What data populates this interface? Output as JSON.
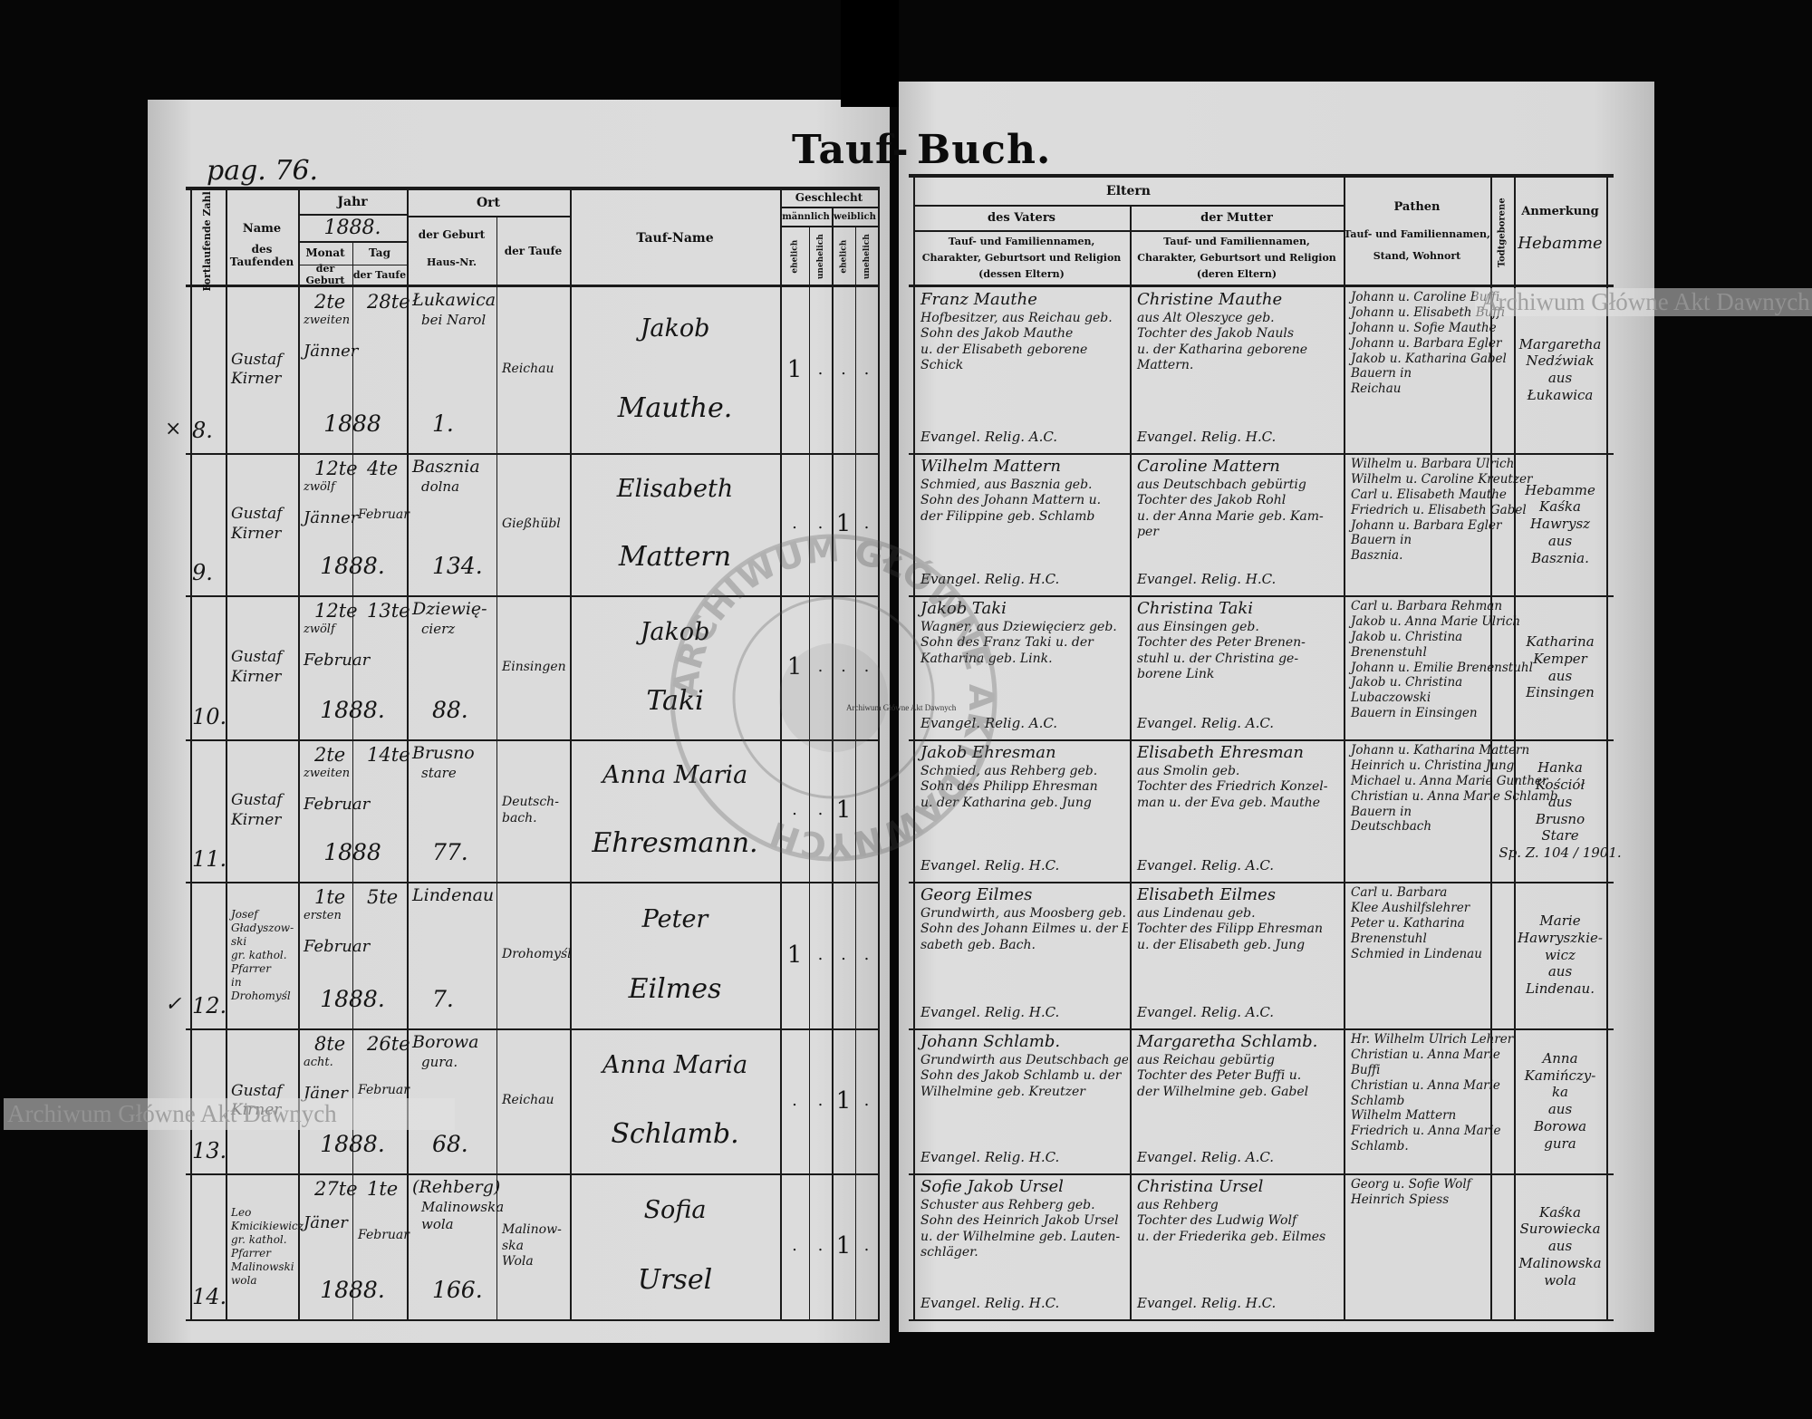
{
  "document": {
    "title_left": "Tauf-",
    "title_right": "Buch.",
    "page_number": "pag. 76.",
    "watermark": "Archiwum Główne Akt Dawnych",
    "stamp_text": "ARCHIWUM GŁÓWNE AKT DAWNYCH"
  },
  "left_header": {
    "fortlaufende_zahl": "Fortlaufende Zahl",
    "name_taufenden": [
      "Name",
      "des Taufenden"
    ],
    "jahr": "Jahr",
    "jahr_value": "1888.",
    "monat": "Monat",
    "tag": "Tag",
    "der_geburt": "der Geburt",
    "der_taufe": "der Taufe",
    "ort": "Ort",
    "ort_geburt": "der Geburt",
    "haus_nr": "Haus-Nr.",
    "ort_taufe": "der Taufe",
    "tauf_name": "Tauf-Name",
    "geschlecht": "Geschlecht",
    "maennlich": "männlich",
    "weiblich": "weiblich",
    "ehelich": "ehelich",
    "unehelich": "unehelich"
  },
  "right_header": {
    "eltern": "Eltern",
    "des_vaters": "des Vaters",
    "der_mutter": "der Mutter",
    "vater_desc": [
      "Tauf- und Familiennamen,",
      "Charakter, Geburtsort und Religion",
      "(dessen Eltern)"
    ],
    "mutter_desc": [
      "Tauf- und Familiennamen,",
      "Charakter, Geburtsort und Religion",
      "(deren Eltern)"
    ],
    "pathen": "Pathen",
    "pathen_desc": [
      "Tauf- und Familiennamen,",
      "Stand, Wohnort"
    ],
    "todtgeborene": "Todtgeborene",
    "anmerkung": "Anmerkung",
    "anmerkung_note": "Hebamme"
  },
  "entries": [
    {
      "number": "8.",
      "margin_mark": "×",
      "officiant": [
        "Gustaf",
        "Kirner"
      ],
      "birth": {
        "day": "2te",
        "word": "zweiten",
        "month": "Jänner"
      },
      "baptism": {
        "day": "28te",
        "month": ""
      },
      "year": "1888",
      "birth_place": [
        "Łukawica",
        "bei Narol"
      ],
      "house_no": "1.",
      "baptism_place": [
        "Reichau"
      ],
      "given_name": "Jakob",
      "surname": "Mauthe.",
      "sex": [
        "1",
        ".",
        ".",
        "."
      ],
      "father": [
        "Franz Mauthe",
        "Hofbesitzer, aus Reichau geb.",
        "Sohn des Jakob Mauthe",
        "u. der Elisabeth geborene",
        "Schick",
        "Evangel. Relig. A.C."
      ],
      "mother": [
        "Christine Mauthe",
        "aus Alt Oleszyce geb.",
        "Tochter des Jakob Nauls",
        "u. der Katharina geborene",
        "Mattern.",
        "Evangel. Relig. H.C."
      ],
      "godparents": [
        "Johann u. Caroline Buffi",
        "Johann u. Elisabeth Buffi",
        "Johann u. Sofie Mauthe",
        "Johann u. Barbara Egler",
        "Jakob u. Katharina Gabel",
        "Bauern in",
        "Reichau"
      ],
      "remark": [
        "Margaretha",
        "Nedźwiak",
        "aus",
        "Łukawica"
      ]
    },
    {
      "number": "9.",
      "margin_mark": "",
      "officiant": [
        "Gustaf",
        "Kirner"
      ],
      "birth": {
        "day": "12te",
        "word": "zwölf",
        "month": "Jänner"
      },
      "baptism": {
        "day": "4te",
        "month": "Februar"
      },
      "year": "1888.",
      "birth_place": [
        "Basznia",
        "dolna"
      ],
      "house_no": "134.",
      "baptism_place": [
        "Gießhübl"
      ],
      "given_name": "Elisabeth",
      "surname": "Mattern",
      "sex": [
        ".",
        ".",
        "1",
        "."
      ],
      "father": [
        "Wilhelm Mattern",
        "Schmied, aus Basznia geb.",
        "Sohn des Johann Mattern u.",
        "der Filippine geb. Schlamb",
        "Evangel. Relig. H.C."
      ],
      "mother": [
        "Caroline Mattern",
        "aus Deutschbach gebürtig",
        "Tochter des Jakob Rohl",
        "u. der Anna Marie geb. Kam-",
        "per",
        "Evangel. Relig. H.C."
      ],
      "godparents": [
        "Wilhelm u. Barbara Ulrich",
        "Wilhelm u. Caroline Kreutzer",
        "Carl u. Elisabeth Mauthe",
        "Friedrich u. Elisabeth Gabel",
        "Johann u. Barbara Egler",
        "Bauern in",
        "Basznia."
      ],
      "remark": [
        "Hebamme",
        "Kaśka",
        "Hawrysz",
        "aus",
        "Basznia."
      ]
    },
    {
      "number": "10.",
      "margin_mark": "",
      "officiant": [
        "Gustaf",
        "Kirner"
      ],
      "birth": {
        "day": "12te",
        "word": "zwölf",
        "month": "Februar"
      },
      "baptism": {
        "day": "13te",
        "month": ""
      },
      "year": "1888.",
      "birth_place": [
        "Dziewię-",
        "cierz"
      ],
      "house_no": "88.",
      "baptism_place": [
        "Einsingen"
      ],
      "given_name": "Jakob",
      "surname": "Taki",
      "sex": [
        "1",
        ".",
        ".",
        "."
      ],
      "father": [
        "Jakob Taki",
        "Wagner, aus Dziewięcierz geb.",
        "Sohn des Franz Taki u. der",
        "Katharina geb. Link.",
        "Evangel. Relig. A.C."
      ],
      "mother": [
        "Christina Taki",
        "aus Einsingen geb.",
        "Tochter des Peter Brenen-",
        "stuhl u. der Christina ge-",
        "borene Link",
        "Evangel. Relig. A.C."
      ],
      "godparents": [
        "Carl u. Barbara Rehman",
        "Jakob u. Anna Marie Ulrich",
        "Jakob u. Christina",
        "Brenenstuhl",
        "Johann u. Emilie Brenenstuhl",
        "Jakob u. Christina",
        "Lubaczowski",
        "Bauern in Einsingen"
      ],
      "remark": [
        "Katharina",
        "Kemper",
        "aus",
        "Einsingen"
      ]
    },
    {
      "number": "11.",
      "margin_mark": "",
      "officiant": [
        "Gustaf",
        "Kirner"
      ],
      "birth": {
        "day": "2te",
        "word": "zweiten",
        "month": "Februar"
      },
      "baptism": {
        "day": "14te",
        "month": ""
      },
      "year": "1888",
      "birth_place": [
        "Brusno",
        "stare"
      ],
      "house_no": "77.",
      "baptism_place": [
        "Deutsch-",
        "bach."
      ],
      "given_name": "Anna Maria",
      "surname": "Ehresmann.",
      "sex": [
        ".",
        ".",
        "1",
        ""
      ],
      "father": [
        "Jakob Ehresman",
        "Schmied, aus Rehberg geb.",
        "Sohn des Philipp Ehresman",
        "u. der Katharina geb. Jung",
        "Evangel. Relig. H.C."
      ],
      "mother": [
        "Elisabeth Ehresman",
        "aus Smolin geb.",
        "Tochter des Friedrich Konzel-",
        "man u. der Eva geb. Mauthe",
        "Evangel. Relig. A.C."
      ],
      "godparents": [
        "Johann u. Katharina Mattern",
        "Heinrich u. Christina Jung",
        "Michael u. Anna Marie Gunther",
        "Christian u. Anna Marie Schlamb",
        "Bauern in",
        "Deutschbach"
      ],
      "remark": [
        "Hanka",
        "Kościół",
        "aus",
        "Brusno",
        "Stare",
        "Sp. Z. 104 / 1901."
      ]
    },
    {
      "number": "12.",
      "margin_mark": "✓",
      "officiant": [
        "Josef",
        "Gładyszow-",
        "ski",
        "gr. kathol.",
        "Pfarrer",
        "in",
        "Drohomyśl"
      ],
      "birth": {
        "day": "1te",
        "word": "ersten",
        "month": "Februar"
      },
      "baptism": {
        "day": "5te",
        "month": ""
      },
      "year": "1888.",
      "birth_place": [
        "Lindenau"
      ],
      "house_no": "7.",
      "baptism_place": [
        "Drohomyśl"
      ],
      "given_name": "Peter",
      "surname": "Eilmes",
      "sex": [
        "1",
        ".",
        ".",
        "."
      ],
      "father": [
        "Georg Eilmes",
        "Grundwirth, aus Moosberg geb.",
        "Sohn des Johann Eilmes u. der Eli-",
        "sabeth geb. Bach.",
        "Evangel. Relig. H.C."
      ],
      "mother": [
        "Elisabeth Eilmes",
        "aus Lindenau geb.",
        "Tochter des Filipp Ehresman",
        "u. der Elisabeth geb. Jung",
        "Evangel. Relig. A.C."
      ],
      "godparents": [
        "Carl u. Barbara",
        "Klee Aushilfslehrer",
        "Peter u. Katharina",
        "Brenenstuhl",
        "Schmied in Lindenau"
      ],
      "remark": [
        "Marie",
        "Hawryszkie-",
        "wicz",
        "aus",
        "Lindenau."
      ]
    },
    {
      "number": "13.",
      "margin_mark": "",
      "officiant": [
        "Gustaf",
        "Kirner"
      ],
      "birth": {
        "day": "8te",
        "word": "acht.",
        "month": "Jäner"
      },
      "baptism": {
        "day": "26te",
        "month": "Februar"
      },
      "year": "1888.",
      "birth_place": [
        "Borowa",
        "gura."
      ],
      "house_no": "68.",
      "baptism_place": [
        "Reichau"
      ],
      "given_name": "Anna Maria",
      "surname": "Schlamb.",
      "sex": [
        ".",
        ".",
        "1",
        "."
      ],
      "father": [
        "Johann Schlamb.",
        "Grundwirth aus Deutschbach geb.",
        "Sohn des Jakob Schlamb u. der",
        "Wilhelmine geb. Kreutzer",
        "Evangel. Relig. H.C."
      ],
      "mother": [
        "Margaretha Schlamb.",
        "aus Reichau gebürtig",
        "Tochter des Peter Buffi u.",
        "der Wilhelmine geb. Gabel",
        "Evangel. Relig. A.C."
      ],
      "godparents": [
        "Hr. Wilhelm Ulrich Lehrer",
        "Christian u. Anna Marie",
        "Buffi",
        "Christian u. Anna Marie",
        "Schlamb",
        "Wilhelm Mattern",
        "Friedrich u. Anna Marie",
        "Schlamb."
      ],
      "remark": [
        "Anna",
        "Kamińczy-",
        "ka",
        "aus",
        "Borowa",
        "gura"
      ]
    },
    {
      "number": "14.",
      "margin_mark": "",
      "officiant": [
        "Leo",
        "Kmicikiewicz",
        "gr. kathol.",
        "Pfarrer",
        "Malinowski",
        "wola"
      ],
      "birth": {
        "day": "27te",
        "word": "",
        "month": "Jäner"
      },
      "baptism": {
        "day": "1te",
        "month": "Februar"
      },
      "year": "1888.",
      "birth_place": [
        "(Rehberg)",
        "Malinowska",
        "wola"
      ],
      "house_no": "166.",
      "baptism_place": [
        "Malinow-",
        "ska",
        "Wola"
      ],
      "given_name": "Sofia",
      "surname": "Ursel",
      "sex": [
        ".",
        ".",
        "1",
        "."
      ],
      "father": [
        "Sofie Jakob Ursel",
        "Schuster aus Rehberg geb.",
        "Sohn des Heinrich Jakob Ursel",
        "u. der Wilhelmine geb. Lauten-",
        "schläger.",
        "Evangel. Relig. H.C."
      ],
      "mother": [
        "Christina Ursel",
        "aus Rehberg",
        "Tochter des Ludwig Wolf",
        "u. der Friederika geb. Eilmes",
        "Evangel. Relig. H.C."
      ],
      "godparents": [
        "Georg u. Sofie Wolf",
        "Heinrich Spiess"
      ],
      "remark": [
        "Kaśka",
        "Surowiecka",
        "aus",
        "Malinowska",
        "wola"
      ]
    }
  ]
}
